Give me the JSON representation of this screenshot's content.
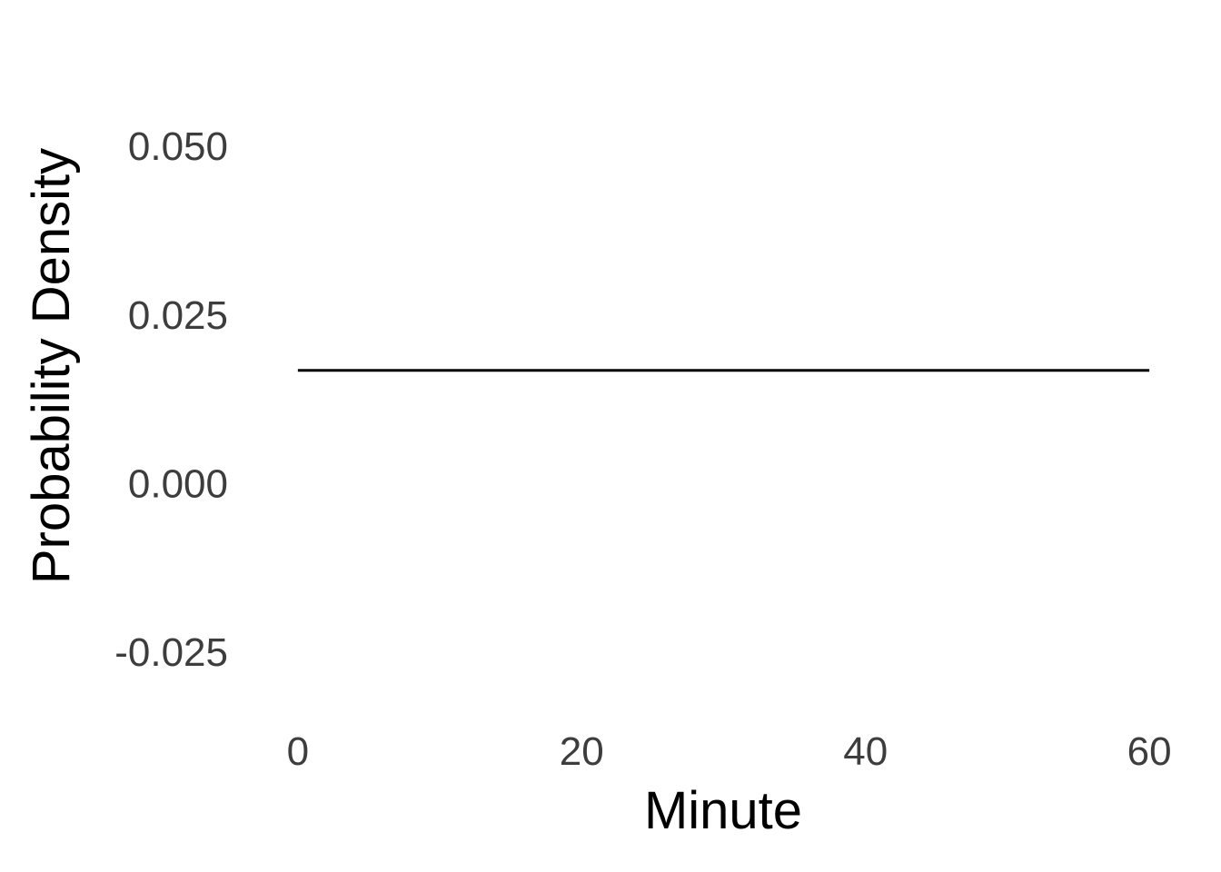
{
  "chart_data": {
    "type": "line",
    "title": "",
    "xlabel": "Minute",
    "ylabel": "Probability Density",
    "xlim": [
      -3,
      63
    ],
    "ylim": [
      -0.0348,
      0.0581
    ],
    "xticks": [
      0,
      20,
      40,
      60
    ],
    "xtick_labels": [
      "0",
      "20",
      "40",
      "60"
    ],
    "yticks": [
      -0.025,
      0,
      0.025,
      0.05
    ],
    "ytick_labels": [
      "-0.025",
      "0.000",
      "0.025",
      "0.050"
    ],
    "grid": false,
    "series": [
      {
        "x": [
          0,
          60
        ],
        "y": [
          0.016667,
          0.016667
        ],
        "color": "#000000"
      }
    ]
  }
}
